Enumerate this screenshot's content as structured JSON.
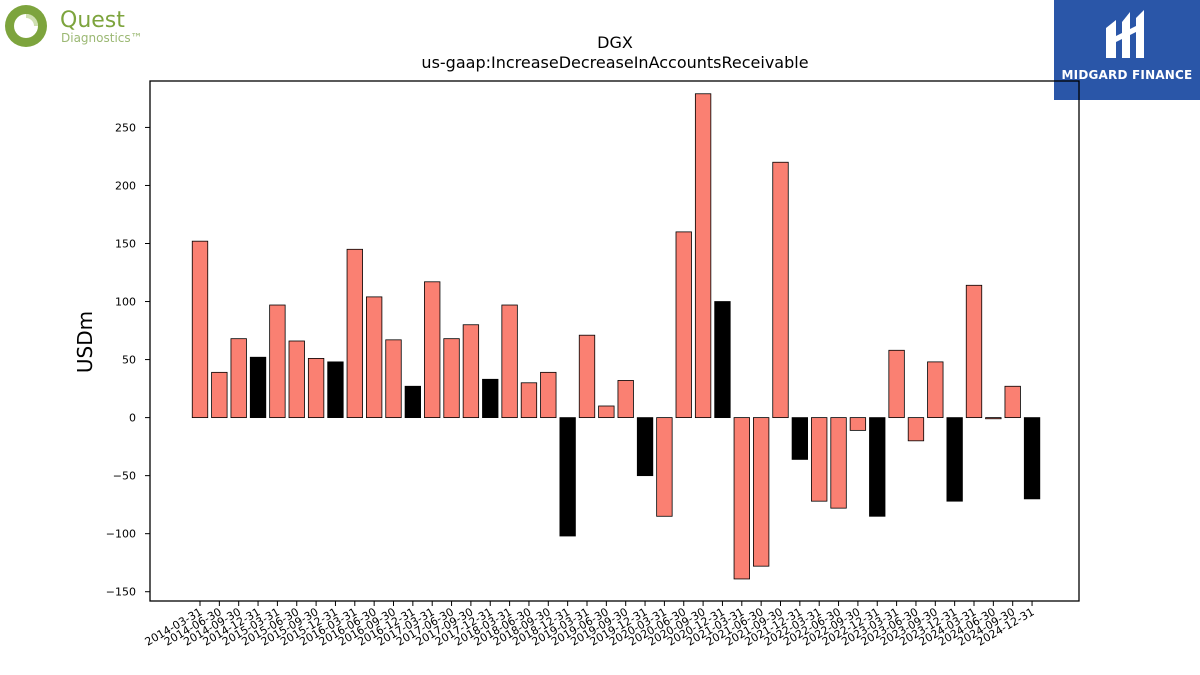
{
  "logos": {
    "left_brand_line1": "Quest",
    "left_brand_line2": "Diagnostics™",
    "right_brand": "MIDGARD FINANCE"
  },
  "colors": {
    "positive_bar": "#fa8072",
    "highlight_bar": "#000000",
    "brand_blue": "#2a56a8",
    "quest_green": "#7da43d"
  },
  "chart_data": {
    "type": "bar",
    "title": "DGX",
    "subtitle": "us-gaap:IncreaseDecreaseInAccountsReceivable",
    "xlabel": "",
    "ylabel": "USDm",
    "ylim": [
      -158,
      290
    ],
    "yticks": [
      -150,
      -100,
      -50,
      0,
      50,
      100,
      150,
      200,
      250
    ],
    "ytick_labels": [
      "−150",
      "−100",
      "−50",
      "0",
      "50",
      "100",
      "150",
      "200",
      "250"
    ],
    "grid": false,
    "categories": [
      "2014-03-31",
      "2014-06-30",
      "2014-09-30",
      "2014-12-31",
      "2015-03-31",
      "2015-06-30",
      "2015-09-30",
      "2015-12-31",
      "2016-03-31",
      "2016-06-30",
      "2016-09-30",
      "2016-12-31",
      "2017-03-31",
      "2017-06-30",
      "2017-09-30",
      "2017-12-31",
      "2018-03-31",
      "2018-06-30",
      "2018-09-30",
      "2018-12-31",
      "2019-03-31",
      "2019-06-30",
      "2019-09-30",
      "2019-12-31",
      "2020-03-31",
      "2020-06-30",
      "2020-09-30",
      "2020-12-31",
      "2021-03-31",
      "2021-06-30",
      "2021-09-30",
      "2021-12-31",
      "2022-03-31",
      "2022-06-30",
      "2022-09-30",
      "2022-12-31",
      "2023-03-31",
      "2023-06-30",
      "2023-09-30",
      "2023-12-31",
      "2024-03-31",
      "2024-06-30",
      "2024-09-30",
      "2024-12-31"
    ],
    "values": [
      152,
      39,
      68,
      52,
      97,
      66,
      51,
      48,
      145,
      104,
      67,
      27,
      117,
      68,
      80,
      33,
      97,
      30,
      39,
      -102,
      71,
      10,
      32,
      -50,
      -85,
      160,
      279,
      100,
      -139,
      -128,
      220,
      -36,
      -72,
      -78,
      -11,
      -85,
      58,
      -20,
      48,
      -72,
      114,
      -1,
      27,
      -70
    ],
    "highlight": [
      false,
      false,
      false,
      true,
      false,
      false,
      false,
      true,
      false,
      false,
      false,
      true,
      false,
      false,
      false,
      true,
      false,
      false,
      false,
      true,
      false,
      false,
      false,
      true,
      false,
      false,
      false,
      true,
      false,
      false,
      false,
      true,
      false,
      false,
      false,
      true,
      false,
      false,
      false,
      true,
      false,
      false,
      false,
      true
    ]
  }
}
